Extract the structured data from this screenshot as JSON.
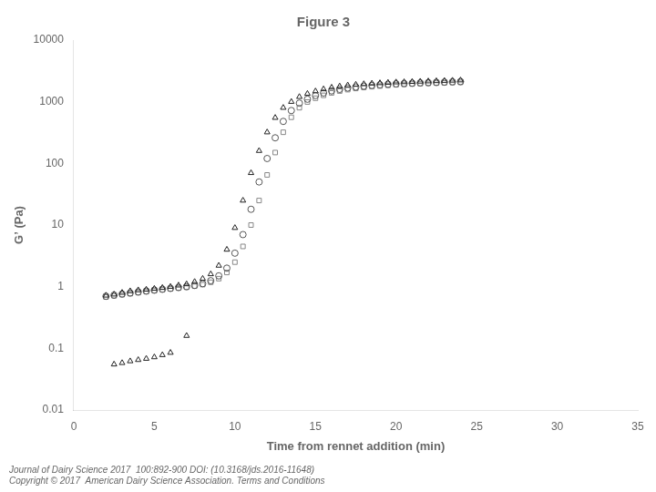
{
  "chart_data": {
    "type": "scatter",
    "title": "Figure 3",
    "x_label": "Time from rennet addition (min)",
    "y_label": "G’ (Pa)",
    "annotations": [
      "Journal of Dairy Science 2017  100:892-900 DOI: (10.3168/jds.2016-11648)",
      "Copyright © 2017  American Dairy Science Association. Terms and Conditions"
    ],
    "log": "y",
    "grid": false,
    "xlim": [
      0,
      35
    ],
    "xticks": [
      0,
      5,
      10,
      15,
      20,
      25,
      30,
      35
    ],
    "ylim": [
      0.01,
      10000
    ],
    "yticks": [
      0.01,
      0.1,
      1,
      10,
      100,
      1000,
      10000
    ],
    "series": [
      {
        "color": "#222222",
        "marker": "triangle",
        "x": [
          2.5,
          3.0,
          3.5,
          4.0,
          4.5,
          5.0,
          5.5,
          6.0,
          7.0
        ],
        "values": [
          0.055,
          0.058,
          0.062,
          0.065,
          0.068,
          0.072,
          0.078,
          0.085,
          0.16
        ]
      },
      {
        "color": "#222222",
        "marker": "triangle",
        "x": [
          2.0,
          2.5,
          3.0,
          3.5,
          4.0,
          4.5,
          5.0,
          5.5,
          6.0,
          6.5,
          7.0,
          7.5,
          8.0,
          8.5,
          9.0,
          9.5,
          10.0,
          10.5,
          11.0,
          11.5,
          12.0,
          12.5,
          13.0,
          13.5,
          14.0,
          14.5,
          15.0,
          15.5,
          16.0,
          16.5,
          17.0,
          17.5,
          18.0,
          18.5,
          19.0,
          19.5,
          20.0,
          20.5,
          21.0,
          21.5,
          22.0,
          22.5,
          23.0,
          23.5,
          24.0
        ],
        "values": [
          0.72,
          0.75,
          0.8,
          0.85,
          0.88,
          0.9,
          0.93,
          0.96,
          1.0,
          1.05,
          1.1,
          1.2,
          1.35,
          1.6,
          2.2,
          4.0,
          9.0,
          25.0,
          70.0,
          160.0,
          320.0,
          550.0,
          800.0,
          1000.0,
          1200.0,
          1350.0,
          1480.0,
          1600.0,
          1700.0,
          1780.0,
          1850.0,
          1900.0,
          1940.0,
          1980.0,
          2010.0,
          2040.0,
          2070.0,
          2090.0,
          2110.0,
          2130.0,
          2150.0,
          2170.0,
          2190.0,
          2210.0,
          2230.0
        ]
      },
      {
        "color": "#555555",
        "marker": "circle",
        "x": [
          2.0,
          2.5,
          3.0,
          3.5,
          4.0,
          4.5,
          5.0,
          5.5,
          6.0,
          6.5,
          7.0,
          7.5,
          8.0,
          8.5,
          9.0,
          9.5,
          10.0,
          10.5,
          11.0,
          11.5,
          12.0,
          12.5,
          13.0,
          13.5,
          14.0,
          14.5,
          15.0,
          15.5,
          16.0,
          16.5,
          17.0,
          17.5,
          18.0,
          18.5,
          19.0,
          19.5,
          20.0,
          20.5,
          21.0,
          21.5,
          22.0,
          22.5,
          23.0,
          23.5,
          24.0
        ],
        "values": [
          0.7,
          0.73,
          0.76,
          0.79,
          0.82,
          0.85,
          0.88,
          0.91,
          0.94,
          0.97,
          1.0,
          1.05,
          1.12,
          1.25,
          1.5,
          2.0,
          3.5,
          7.0,
          18.0,
          50.0,
          120.0,
          260.0,
          480.0,
          720.0,
          950.0,
          1100.0,
          1260.0,
          1390.0,
          1500.0,
          1590.0,
          1670.0,
          1730.0,
          1790.0,
          1840.0,
          1880.0,
          1920.0,
          1950.0,
          1975.0,
          2000.0,
          2020.0,
          2040.0,
          2060.0,
          2080.0,
          2100.0,
          2120.0
        ]
      },
      {
        "color": "#888888",
        "marker": "square",
        "x": [
          2.0,
          2.5,
          3.0,
          3.5,
          4.0,
          4.5,
          5.0,
          5.5,
          6.0,
          6.5,
          7.0,
          7.5,
          8.0,
          8.5,
          9.0,
          9.5,
          10.0,
          10.5,
          11.0,
          11.5,
          12.0,
          12.5,
          13.0,
          13.5,
          14.0,
          14.5,
          15.0,
          15.5,
          16.0,
          16.5,
          17.0,
          17.5,
          18.0,
          18.5,
          19.0,
          19.5,
          20.0,
          20.5,
          21.0,
          21.5,
          22.0,
          22.5,
          23.0,
          23.5,
          24.0
        ],
        "values": [
          0.68,
          0.71,
          0.74,
          0.77,
          0.8,
          0.83,
          0.86,
          0.89,
          0.92,
          0.95,
          0.98,
          1.02,
          1.08,
          1.18,
          1.35,
          1.7,
          2.5,
          4.5,
          10.0,
          25.0,
          65.0,
          150.0,
          320.0,
          560.0,
          800.0,
          990.0,
          1140.0,
          1270.0,
          1390.0,
          1490.0,
          1570.0,
          1640.0,
          1700.0,
          1755.0,
          1800.0,
          1845.0,
          1880.0,
          1910.0,
          1940.0,
          1965.0,
          1985.0,
          2005.0,
          2025.0,
          2045.0,
          2060.0
        ]
      }
    ]
  }
}
